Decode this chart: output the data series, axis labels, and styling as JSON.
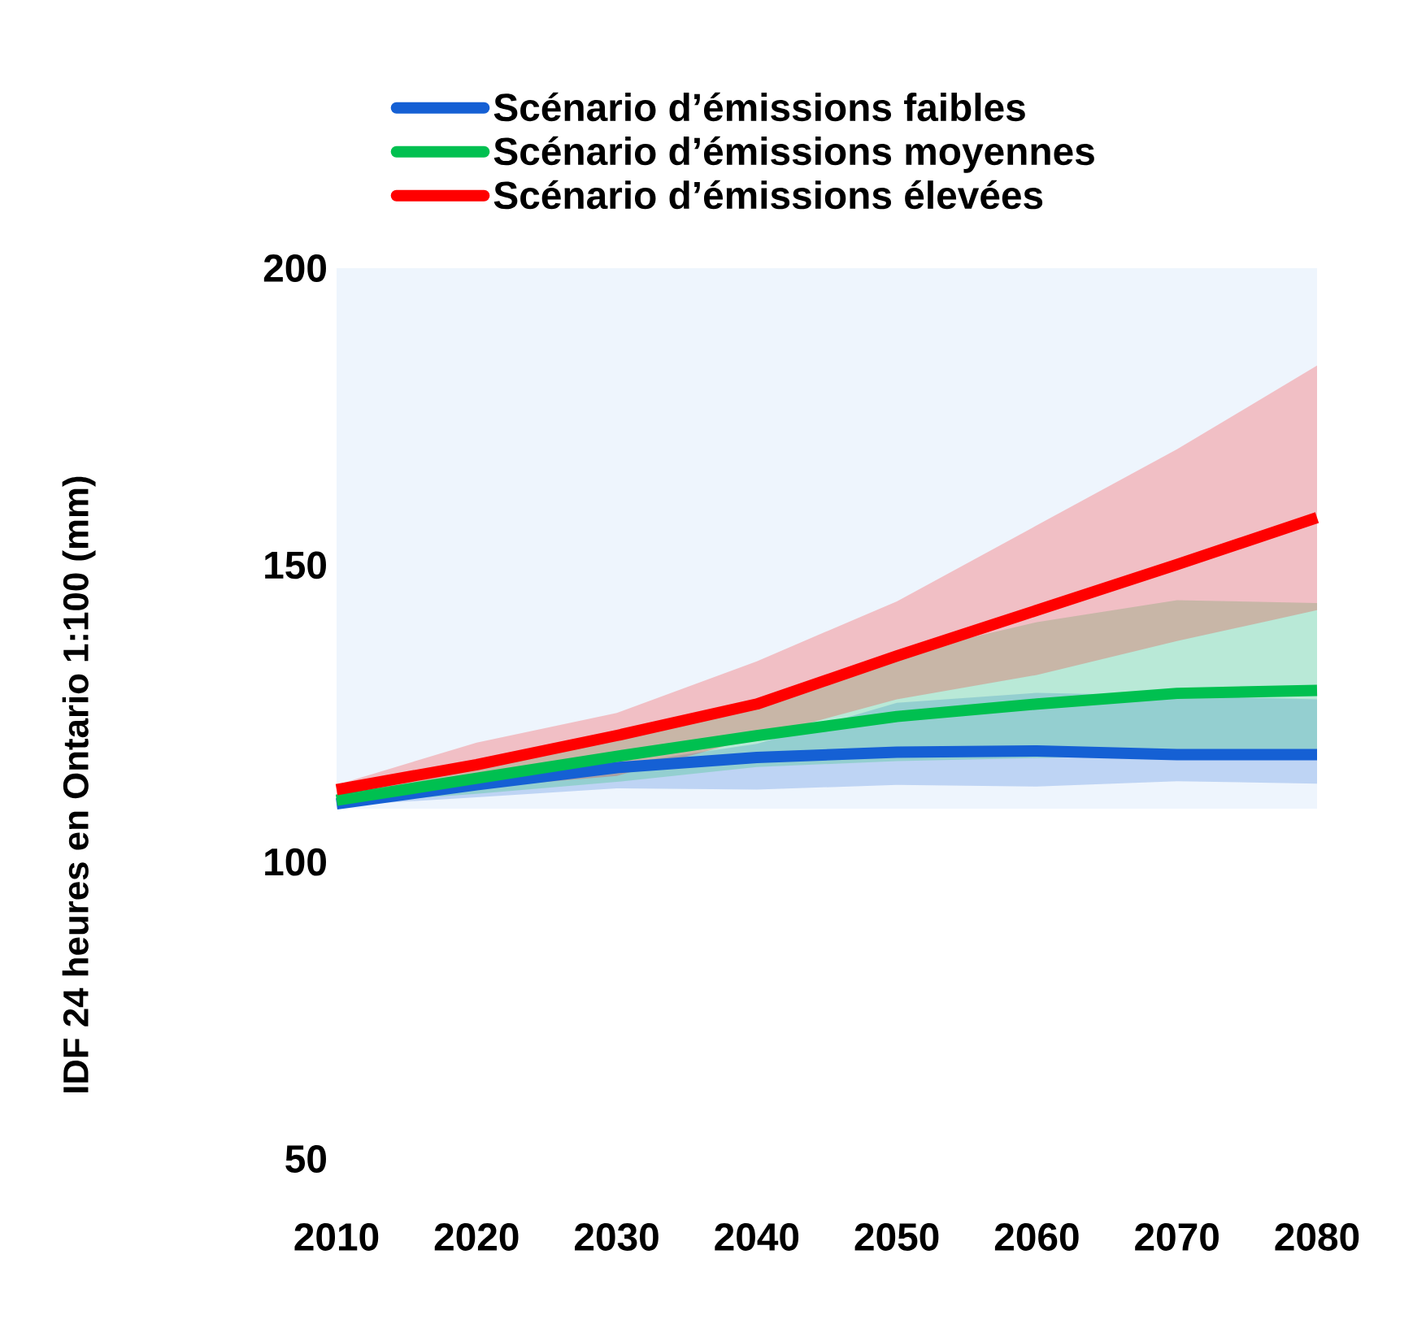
{
  "chart_data": {
    "type": "line",
    "ylabel": "IDF 24 heures en Ontario 1:100 (mm)",
    "x": [
      2010,
      2020,
      2030,
      2040,
      2050,
      2060,
      2070,
      2080
    ],
    "xlim": [
      2010,
      2080
    ],
    "xticks": [
      2010,
      2020,
      2030,
      2040,
      2050,
      2060,
      2070,
      2080
    ],
    "ylim": [
      50,
      200
    ],
    "yticks": [
      50,
      100,
      150,
      200
    ],
    "grid": false,
    "legend": "top",
    "marker": "none",
    "line_style": "solid",
    "bands": [
      {
        "axis": "y",
        "from": 109,
        "to": 200,
        "color": "#eef5fd"
      }
    ],
    "series": [
      {
        "name": "Scénario d’émissions faibles",
        "color": "#1560d4",
        "values": [
          109.8,
          113.0,
          115.9,
          117.6,
          118.5,
          118.7,
          118.1,
          118.1
        ],
        "lower": [
          109.5,
          110.9,
          112.4,
          112.2,
          113.0,
          112.7,
          113.6,
          113.2
        ],
        "upper": [
          110.3,
          113.6,
          116.4,
          119.9,
          126.8,
          128.5,
          128.0,
          127.4
        ]
      },
      {
        "name": "Scénario d’émissions moyennes",
        "color": "#00c050",
        "values": [
          110.4,
          114.1,
          117.8,
          121.3,
          124.5,
          126.6,
          128.4,
          128.9
        ],
        "lower": [
          109.8,
          111.5,
          113.5,
          116.0,
          117.0,
          117.5,
          118.0,
          118.8
        ],
        "upper": [
          111.0,
          117.0,
          122.0,
          126.5,
          134.9,
          140.4,
          144.1,
          143.6
        ]
      },
      {
        "name": "Scénario d’émissions élevées",
        "color": "#ff0000",
        "values": [
          112.2,
          116.4,
          121.3,
          126.6,
          134.7,
          142.4,
          150.1,
          158.0
        ],
        "lower": [
          111.0,
          112.5,
          114.5,
          121.0,
          127.4,
          131.5,
          137.2,
          142.4
        ],
        "upper": [
          113.0,
          120.1,
          125.1,
          133.8,
          143.9,
          156.7,
          169.5,
          183.6
        ]
      }
    ]
  }
}
